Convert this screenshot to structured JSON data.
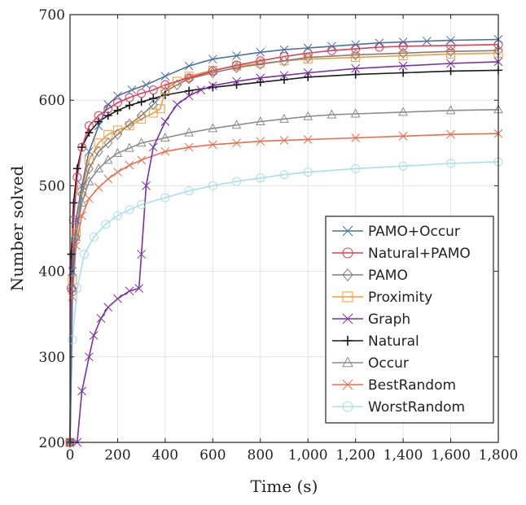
{
  "chart_data": {
    "type": "line",
    "xlabel": "Time (s)",
    "ylabel": "Number solved",
    "xlim": [
      0,
      1800
    ],
    "ylim": [
      200,
      700
    ],
    "xticks": [
      0,
      200,
      400,
      600,
      800,
      1000,
      1200,
      1400,
      1600,
      1800
    ],
    "xtick_labels": [
      "0",
      "200",
      "400",
      "600",
      "800",
      "1,000",
      "1,200",
      "1,400",
      "1,600",
      "1,800"
    ],
    "yticks": [
      200,
      300,
      400,
      500,
      600,
      700
    ],
    "ytick_labels": [
      "200",
      "300",
      "400",
      "500",
      "600",
      "700"
    ],
    "grid": true,
    "legend_position": "bottom-right",
    "series": [
      {
        "name": "PAMO+Occur",
        "color": "#4a6fa5",
        "marker": "x",
        "points": [
          [
            0,
            200
          ],
          [
            10,
            400
          ],
          [
            25,
            460
          ],
          [
            50,
            500
          ],
          [
            80,
            540
          ],
          [
            120,
            570
          ],
          [
            160,
            595
          ],
          [
            200,
            605
          ],
          [
            260,
            612
          ],
          [
            320,
            618
          ],
          [
            400,
            628
          ],
          [
            500,
            640
          ],
          [
            600,
            648
          ],
          [
            700,
            652
          ],
          [
            800,
            656
          ],
          [
            900,
            659
          ],
          [
            1000,
            661
          ],
          [
            1100,
            663
          ],
          [
            1200,
            665
          ],
          [
            1300,
            667
          ],
          [
            1400,
            668
          ],
          [
            1500,
            669
          ],
          [
            1600,
            670
          ],
          [
            1800,
            671
          ]
        ]
      },
      {
        "name": "Natural+PAMO",
        "color": "#e03c55",
        "marker": "circle",
        "points": [
          [
            0,
            200
          ],
          [
            5,
            380
          ],
          [
            15,
            460
          ],
          [
            30,
            510
          ],
          [
            50,
            545
          ],
          [
            80,
            570
          ],
          [
            120,
            582
          ],
          [
            160,
            590
          ],
          [
            200,
            597
          ],
          [
            250,
            603
          ],
          [
            300,
            608
          ],
          [
            350,
            612
          ],
          [
            400,
            618
          ],
          [
            500,
            626
          ],
          [
            600,
            634
          ],
          [
            700,
            641
          ],
          [
            800,
            646
          ],
          [
            900,
            651
          ],
          [
            1000,
            655
          ],
          [
            1100,
            658
          ],
          [
            1200,
            660
          ],
          [
            1300,
            662
          ],
          [
            1400,
            663
          ],
          [
            1600,
            664
          ],
          [
            1800,
            665
          ]
        ]
      },
      {
        "name": "PAMO",
        "color": "#7f7f7f",
        "marker": "diamond",
        "points": [
          [
            0,
            200
          ],
          [
            10,
            380
          ],
          [
            25,
            440
          ],
          [
            50,
            490
          ],
          [
            80,
            520
          ],
          [
            120,
            540
          ],
          [
            160,
            550
          ],
          [
            200,
            560
          ],
          [
            250,
            572
          ],
          [
            300,
            582
          ],
          [
            350,
            595
          ],
          [
            400,
            610
          ],
          [
            450,
            618
          ],
          [
            500,
            625
          ],
          [
            600,
            632
          ],
          [
            700,
            638
          ],
          [
            800,
            642
          ],
          [
            900,
            646
          ],
          [
            1000,
            650
          ],
          [
            1200,
            653
          ],
          [
            1400,
            655
          ],
          [
            1600,
            657
          ],
          [
            1800,
            658
          ]
        ]
      },
      {
        "name": "Proximity",
        "color": "#f79a3d",
        "marker": "square",
        "points": [
          [
            0,
            200
          ],
          [
            10,
            390
          ],
          [
            25,
            445
          ],
          [
            50,
            495
          ],
          [
            80,
            530
          ],
          [
            120,
            550
          ],
          [
            160,
            560
          ],
          [
            200,
            565
          ],
          [
            250,
            570
          ],
          [
            300,
            578
          ],
          [
            350,
            585
          ],
          [
            380,
            590
          ],
          [
            400,
            612
          ],
          [
            450,
            622
          ],
          [
            500,
            628
          ],
          [
            600,
            635
          ],
          [
            700,
            640
          ],
          [
            800,
            643
          ],
          [
            900,
            646
          ],
          [
            1000,
            648
          ],
          [
            1200,
            650
          ],
          [
            1400,
            652
          ],
          [
            1600,
            654
          ],
          [
            1800,
            655
          ]
        ]
      },
      {
        "name": "Graph",
        "color": "#7b2fa5",
        "marker": "x",
        "points": [
          [
            0,
            200
          ],
          [
            30,
            200
          ],
          [
            50,
            260
          ],
          [
            80,
            300
          ],
          [
            100,
            325
          ],
          [
            130,
            345
          ],
          [
            160,
            358
          ],
          [
            200,
            368
          ],
          [
            250,
            377
          ],
          [
            290,
            380
          ],
          [
            300,
            420
          ],
          [
            320,
            500
          ],
          [
            350,
            545
          ],
          [
            400,
            575
          ],
          [
            450,
            595
          ],
          [
            500,
            605
          ],
          [
            550,
            612
          ],
          [
            600,
            617
          ],
          [
            700,
            622
          ],
          [
            800,
            626
          ],
          [
            900,
            629
          ],
          [
            1000,
            632
          ],
          [
            1200,
            637
          ],
          [
            1400,
            640
          ],
          [
            1600,
            643
          ],
          [
            1800,
            645
          ]
        ]
      },
      {
        "name": "Natural",
        "color": "#1a1a1a",
        "marker": "plus",
        "points": [
          [
            0,
            200
          ],
          [
            5,
            420
          ],
          [
            15,
            480
          ],
          [
            30,
            520
          ],
          [
            50,
            545
          ],
          [
            80,
            562
          ],
          [
            120,
            575
          ],
          [
            160,
            582
          ],
          [
            200,
            588
          ],
          [
            250,
            594
          ],
          [
            300,
            598
          ],
          [
            350,
            602
          ],
          [
            400,
            606
          ],
          [
            500,
            611
          ],
          [
            600,
            615
          ],
          [
            700,
            618
          ],
          [
            800,
            621
          ],
          [
            900,
            624
          ],
          [
            1000,
            627
          ],
          [
            1200,
            630
          ],
          [
            1400,
            632
          ],
          [
            1600,
            634
          ],
          [
            1800,
            635
          ]
        ]
      },
      {
        "name": "Occur",
        "color": "#8c8c8c",
        "marker": "triangle",
        "points": [
          [
            0,
            200
          ],
          [
            10,
            380
          ],
          [
            25,
            440
          ],
          [
            50,
            480
          ],
          [
            80,
            505
          ],
          [
            120,
            520
          ],
          [
            160,
            530
          ],
          [
            200,
            538
          ],
          [
            250,
            544
          ],
          [
            300,
            550
          ],
          [
            400,
            556
          ],
          [
            500,
            562
          ],
          [
            600,
            567
          ],
          [
            700,
            571
          ],
          [
            800,
            575
          ],
          [
            900,
            578
          ],
          [
            1000,
            581
          ],
          [
            1100,
            583
          ],
          [
            1200,
            584
          ],
          [
            1400,
            586
          ],
          [
            1600,
            588
          ],
          [
            1800,
            589
          ]
        ]
      },
      {
        "name": "BestRandom",
        "color": "#f06a4a",
        "marker": "x",
        "points": [
          [
            0,
            200
          ],
          [
            10,
            370
          ],
          [
            25,
            430
          ],
          [
            50,
            465
          ],
          [
            80,
            485
          ],
          [
            120,
            498
          ],
          [
            160,
            508
          ],
          [
            200,
            516
          ],
          [
            250,
            524
          ],
          [
            300,
            530
          ],
          [
            400,
            540
          ],
          [
            500,
            545
          ],
          [
            600,
            548
          ],
          [
            700,
            550
          ],
          [
            800,
            552
          ],
          [
            900,
            553
          ],
          [
            1000,
            554
          ],
          [
            1200,
            556
          ],
          [
            1400,
            558
          ],
          [
            1600,
            560
          ],
          [
            1800,
            561
          ]
        ]
      },
      {
        "name": "WorstRandom",
        "color": "#a8dfea",
        "marker": "circle",
        "points": [
          [
            0,
            200
          ],
          [
            10,
            320
          ],
          [
            30,
            380
          ],
          [
            60,
            420
          ],
          [
            100,
            440
          ],
          [
            150,
            455
          ],
          [
            200,
            465
          ],
          [
            250,
            472
          ],
          [
            300,
            478
          ],
          [
            400,
            486
          ],
          [
            500,
            494
          ],
          [
            600,
            500
          ],
          [
            700,
            505
          ],
          [
            800,
            509
          ],
          [
            900,
            513
          ],
          [
            1000,
            516
          ],
          [
            1200,
            520
          ],
          [
            1400,
            523
          ],
          [
            1600,
            526
          ],
          [
            1800,
            528
          ]
        ]
      }
    ]
  }
}
